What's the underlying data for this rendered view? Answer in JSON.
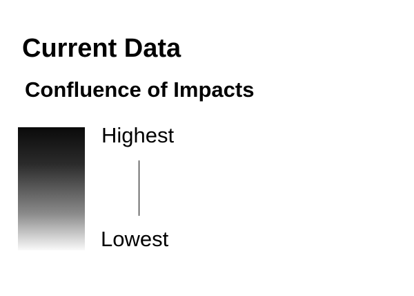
{
  "slide": {
    "title": "Current Data",
    "subtitle": "Confluence of Impacts"
  },
  "scale": {
    "high_label": "Highest",
    "low_label": "Lowest",
    "gradient_top_color": "#0a0a0a",
    "gradient_bottom_color": "#fafafa"
  }
}
